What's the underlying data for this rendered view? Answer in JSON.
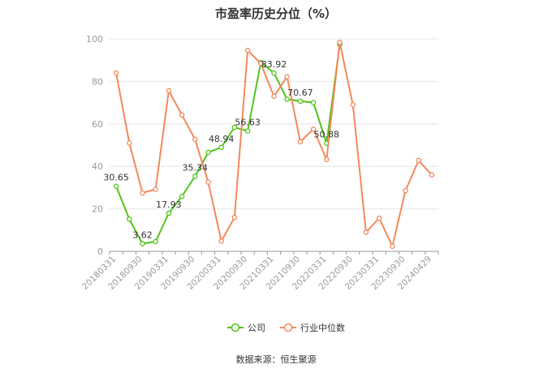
{
  "chart_data": {
    "type": "line",
    "title": "市盈率历史分位（%）",
    "source": "数据来源：恒生聚源",
    "ylim": [
      0,
      100
    ],
    "yticks": [
      0,
      20,
      40,
      60,
      80,
      100
    ],
    "grid": true,
    "legend_position": "bottom",
    "categories": [
      "20180331",
      "20180630",
      "20180930",
      "20181231",
      "20190331",
      "20190630",
      "20190930",
      "20191231",
      "20200331",
      "20200630",
      "20200930",
      "20201231",
      "20210331",
      "20210630",
      "20210930",
      "20211231",
      "20220331",
      "20220630",
      "20220930",
      "20221231",
      "20230331",
      "20230630",
      "20230930",
      "20231231",
      "20240429"
    ],
    "tick_labels": [
      "20180331",
      "20180930",
      "20190331",
      "20190930",
      "20200331",
      "20200930",
      "20210331",
      "20210930",
      "20220331",
      "20220930",
      "20230331",
      "20230930",
      "20240429"
    ],
    "series": [
      {
        "name": "公司",
        "color": "#52c41a",
        "values": [
          30.65,
          15.2,
          3.62,
          4.6,
          17.93,
          25.9,
          35.34,
          46.6,
          48.94,
          58.4,
          56.63,
          88.9,
          83.92,
          71.6,
          70.67,
          70.0,
          50.88,
          97.3,
          null,
          null,
          null,
          null,
          null,
          null,
          null
        ],
        "labels": [
          {
            "index": 0,
            "text": "30.65"
          },
          {
            "index": 2,
            "text": "3.62"
          },
          {
            "index": 4,
            "text": "17.93"
          },
          {
            "index": 6,
            "text": "35.34"
          },
          {
            "index": 8,
            "text": "48.94"
          },
          {
            "index": 10,
            "text": "56.63"
          },
          {
            "index": 12,
            "text": "83.92"
          },
          {
            "index": 14,
            "text": "70.67"
          },
          {
            "index": 16,
            "text": "50.88"
          }
        ]
      },
      {
        "name": "行业中位数",
        "color": "#f4885b",
        "values": [
          84.0,
          51.0,
          27.5,
          29.2,
          75.6,
          64.2,
          52.7,
          32.6,
          4.8,
          16.0,
          94.6,
          88.4,
          73.0,
          82.2,
          51.6,
          57.5,
          43.3,
          98.4,
          69.0,
          9.0,
          15.6,
          2.4,
          28.6,
          42.8,
          36.0
        ]
      }
    ]
  }
}
